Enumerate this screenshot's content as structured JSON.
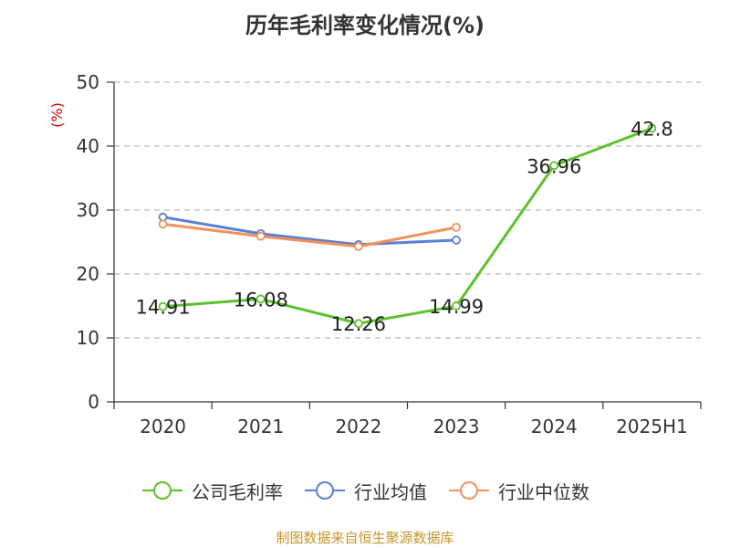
{
  "chart_data": {
    "type": "line",
    "title": "历年毛利率变化情况(%)",
    "ylabel": "(%)",
    "xlabel": "",
    "categories": [
      "2020",
      "2021",
      "2022",
      "2023",
      "2024",
      "2025H1"
    ],
    "ylim": [
      0,
      50
    ],
    "yticks": [
      0,
      10,
      20,
      30,
      40,
      50
    ],
    "grid": true,
    "legend_position": "bottom",
    "series": [
      {
        "name": "公司毛利率",
        "color": "#5cc22b",
        "values": [
          14.91,
          16.08,
          12.26,
          14.99,
          36.96,
          42.8
        ],
        "labels": [
          "14.91",
          "16.08",
          "12.26",
          "14.99",
          "36.96",
          "42.8"
        ]
      },
      {
        "name": "行业均值",
        "color": "#5b7fd6",
        "values": [
          28.9,
          26.3,
          24.6,
          25.3,
          null,
          null
        ]
      },
      {
        "name": "行业中位数",
        "color": "#f2915c",
        "values": [
          27.8,
          25.9,
          24.3,
          27.3,
          null,
          null
        ]
      }
    ]
  },
  "footer": {
    "source": "制图数据来自恒生聚源数据库"
  }
}
